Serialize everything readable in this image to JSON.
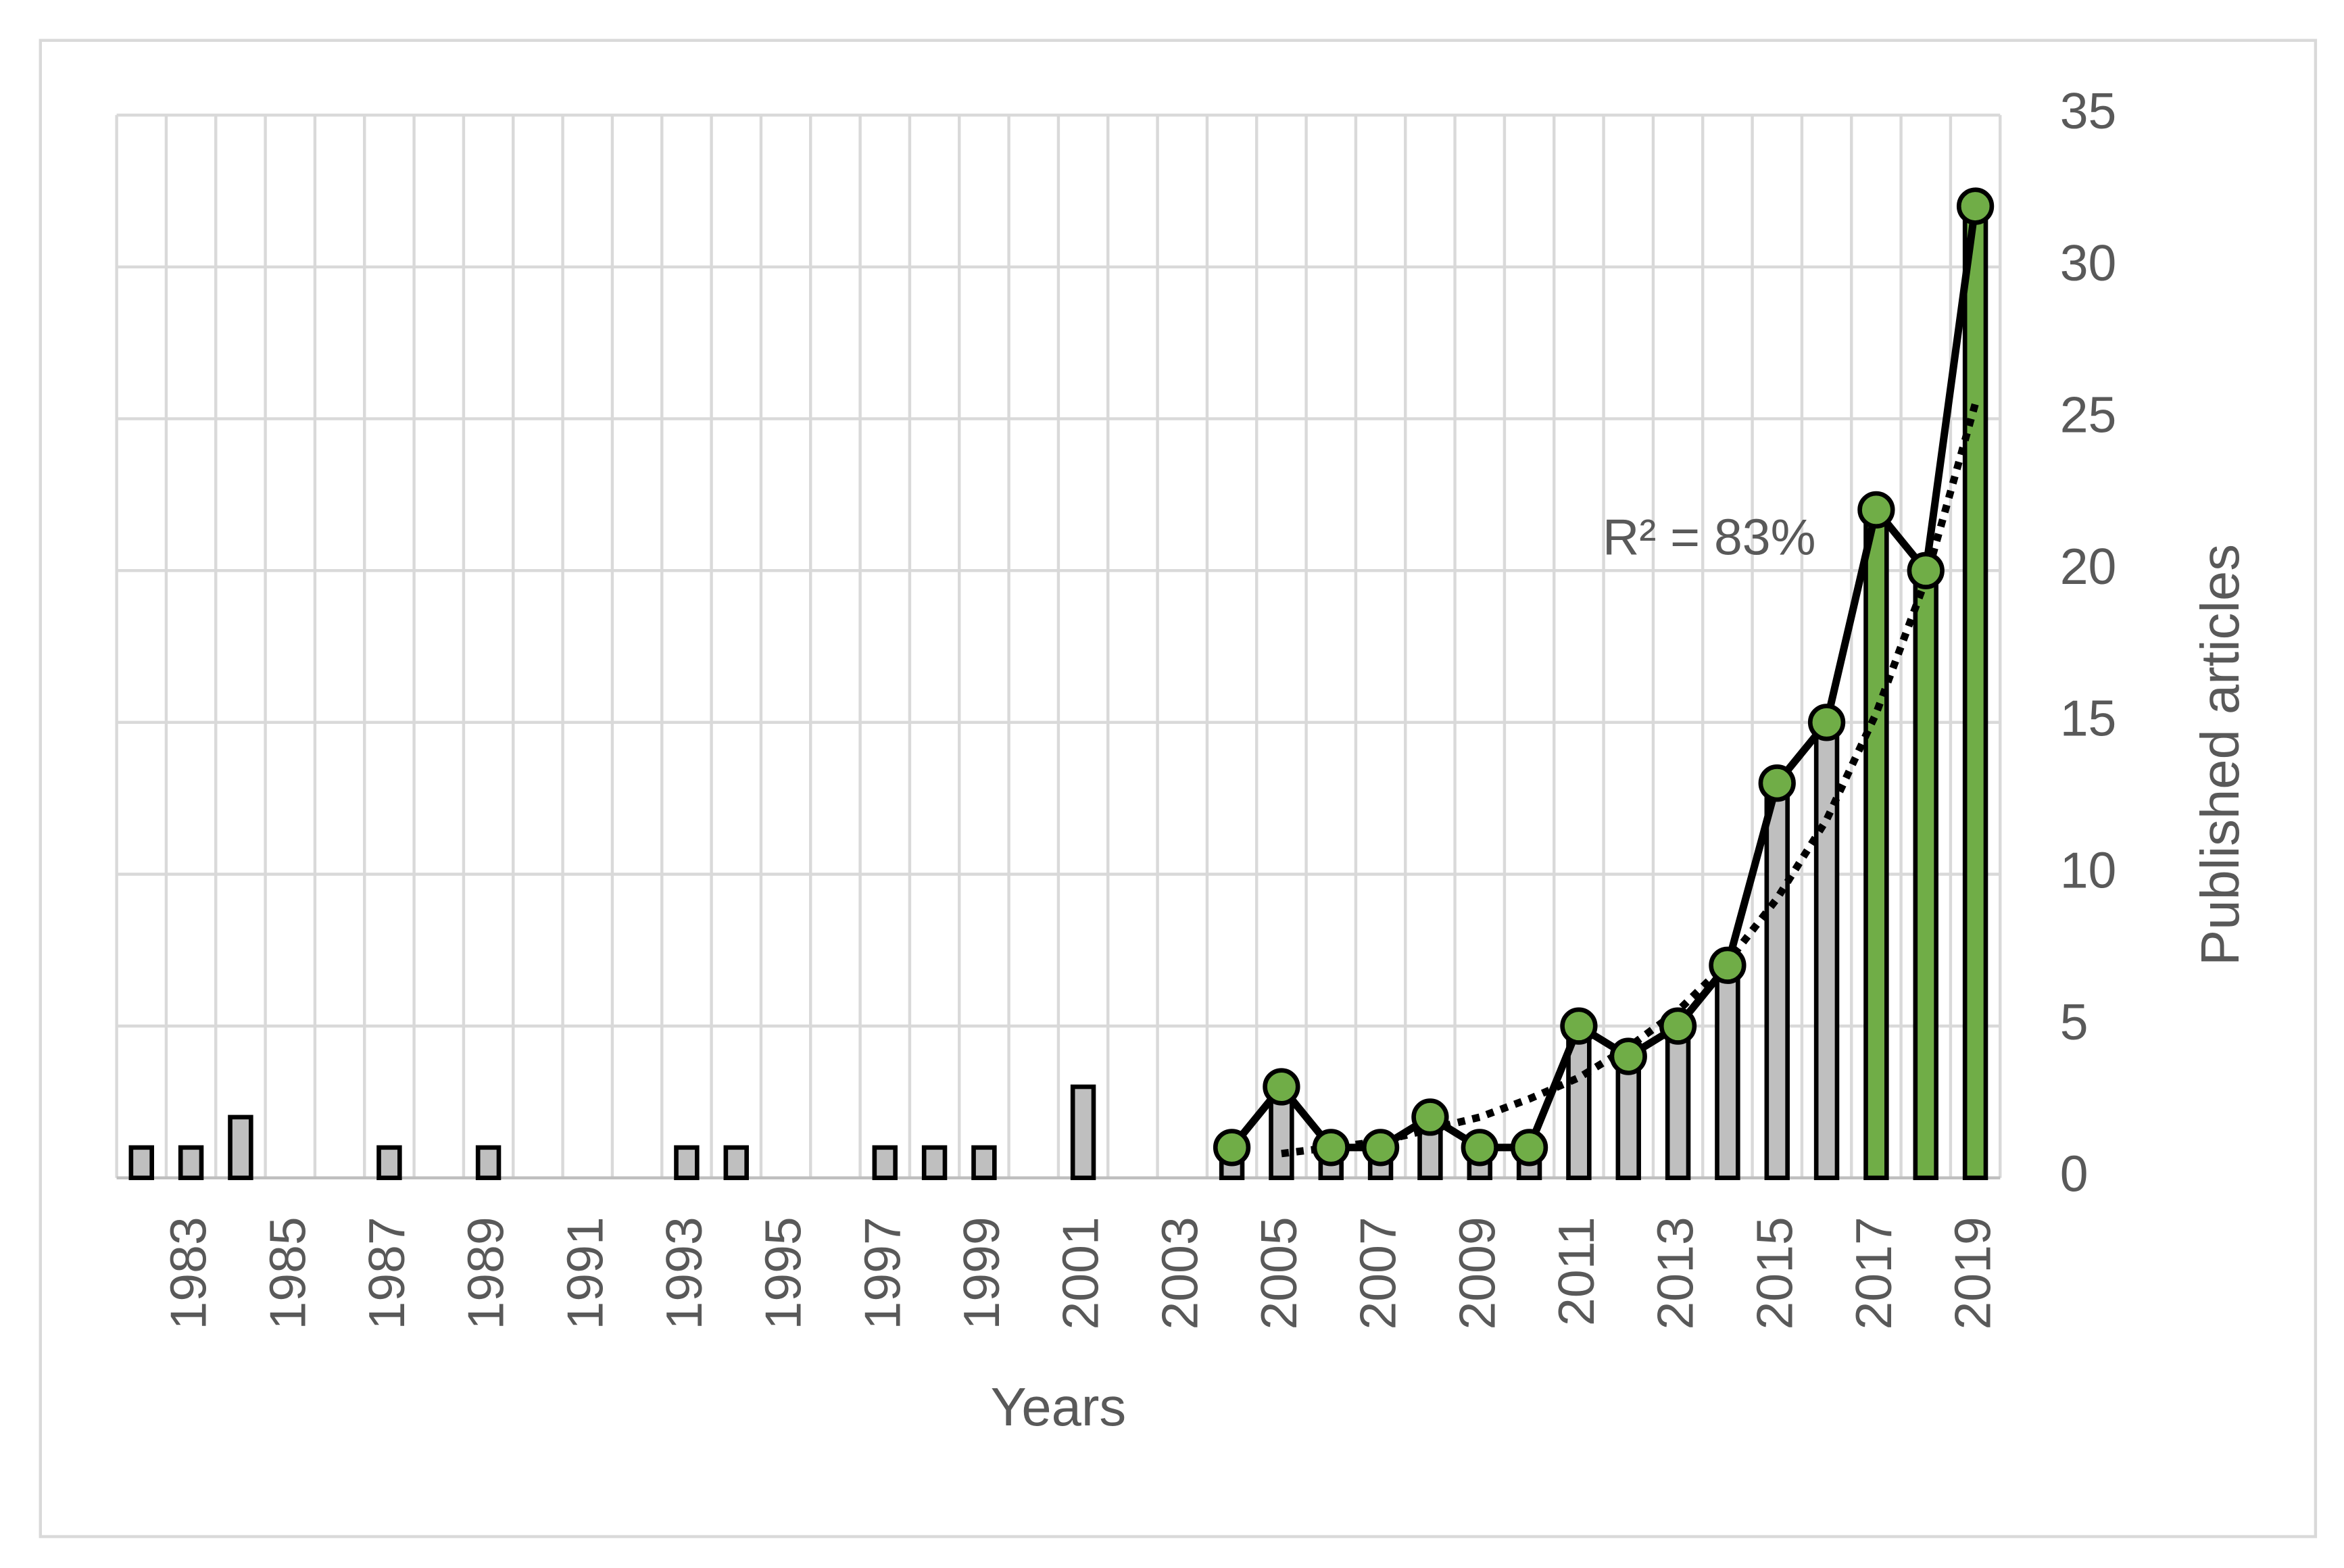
{
  "chart_data": {
    "type": "bar",
    "categories": [
      null,
      "1983",
      null,
      "1985",
      null,
      "1987",
      null,
      "1989",
      null,
      "1991",
      null,
      "1993",
      null,
      "1995",
      null,
      "1997",
      null,
      "1999",
      null,
      "2001",
      null,
      "2003",
      null,
      "2005",
      null,
      "2007",
      null,
      "2009",
      null,
      "2011",
      null,
      "2013",
      null,
      "2015",
      null,
      "2017",
      null,
      "2019"
    ],
    "series": [
      {
        "type": "bar",
        "colors": [
          "#bfbfbf",
          "#bfbfbf",
          "#bfbfbf",
          "#bfbfbf",
          "#bfbfbf",
          "#bfbfbf",
          "#bfbfbf",
          "#bfbfbf",
          "#bfbfbf",
          "#bfbfbf",
          "#bfbfbf",
          "#bfbfbf",
          "#bfbfbf",
          "#bfbfbf",
          "#bfbfbf",
          "#bfbfbf",
          "#bfbfbf",
          "#bfbfbf",
          "#bfbfbf",
          "#bfbfbf",
          "#bfbfbf",
          "#bfbfbf",
          "#bfbfbf",
          "#bfbfbf",
          "#bfbfbf",
          "#bfbfbf",
          "#bfbfbf",
          "#bfbfbf",
          "#bfbfbf",
          "#bfbfbf",
          "#bfbfbf",
          "#bfbfbf",
          "#bfbfbf",
          "#bfbfbf",
          "#bfbfbf",
          "#70ad47",
          "#70ad47",
          "#70ad47"
        ],
        "values": [
          1,
          1,
          2,
          0,
          0,
          1,
          0,
          1,
          0,
          0,
          0,
          1,
          1,
          0,
          0,
          1,
          1,
          1,
          0,
          3,
          0,
          0,
          1,
          3,
          1,
          1,
          2,
          1,
          1,
          5,
          4,
          5,
          7,
          13,
          15,
          22,
          20,
          32
        ]
      },
      {
        "type": "line",
        "color": "#000000",
        "marker_color": "#70ad47",
        "values": [
          null,
          null,
          null,
          null,
          null,
          null,
          null,
          null,
          null,
          null,
          null,
          null,
          null,
          null,
          null,
          null,
          null,
          null,
          null,
          null,
          null,
          null,
          1,
          3,
          1,
          1,
          2,
          1,
          1,
          5,
          4,
          5,
          7,
          13,
          15,
          22,
          20,
          32
        ]
      },
      {
        "type": "trend",
        "color": "#000000",
        "values": [
          null,
          null,
          null,
          null,
          null,
          null,
          null,
          null,
          null,
          null,
          null,
          null,
          null,
          null,
          null,
          null,
          null,
          null,
          null,
          null,
          null,
          null,
          null,
          0.8,
          1.0,
          1.2,
          1.6,
          2.0,
          2.6,
          3.3,
          4.3,
          5.5,
          7.1,
          9.2,
          11.8,
          15.3,
          19.7,
          25.5
        ]
      }
    ],
    "annotation": "R² = 83%",
    "x_label": "Years",
    "y_label": "Published articles",
    "y_axis_side": "right",
    "ylim": [
      0,
      35
    ],
    "yticks": [
      0,
      5,
      10,
      15,
      20,
      25,
      30,
      35
    ],
    "grid": true
  }
}
